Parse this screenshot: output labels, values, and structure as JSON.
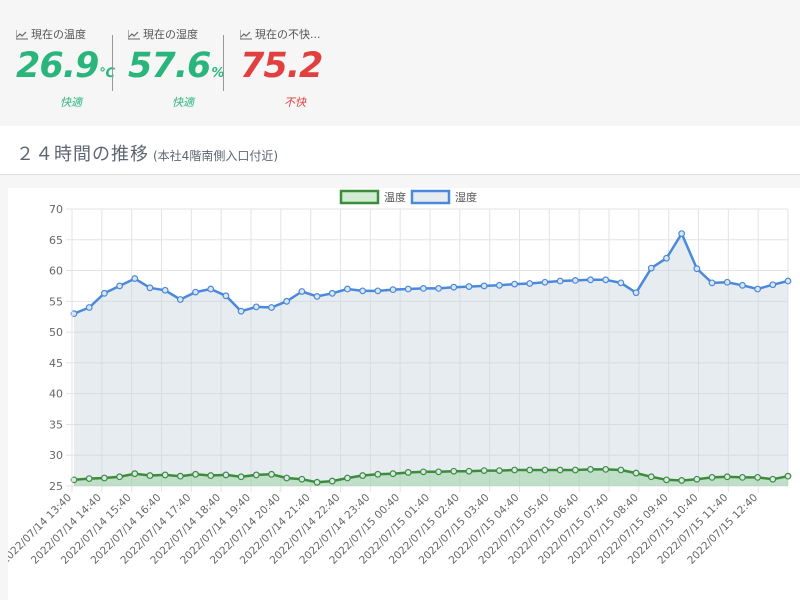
{
  "metrics": [
    {
      "label": "現在の温度",
      "value": "26.9",
      "unit": "℃",
      "status": "快適",
      "color": "#2ab57d"
    },
    {
      "label": "現在の湿度",
      "value": "57.6",
      "unit": "%",
      "status": "快適",
      "color": "#2ab57d"
    },
    {
      "label": "現在の不快...",
      "value": "75.2",
      "unit": "",
      "status": "不快",
      "color": "#e04040"
    }
  ],
  "section": {
    "title": "２４時間の推移",
    "subtitle": "(本社4階南側入口付近)"
  },
  "chart_data": {
    "type": "line",
    "legend": [
      "温度",
      "湿度"
    ],
    "legend_position": "top",
    "grid": true,
    "ylim": [
      25,
      70
    ],
    "yticks": [
      25,
      30,
      35,
      40,
      45,
      50,
      55,
      60,
      65,
      70
    ],
    "x_tick_labels": [
      "2022/07/14 13:40",
      "2022/07/14 14:40",
      "2022/07/14 15:40",
      "2022/07/14 16:40",
      "2022/07/14 17:40",
      "2022/07/14 18:40",
      "2022/07/14 19:40",
      "2022/07/14 20:40",
      "2022/07/14 21:40",
      "2022/07/14 22:40",
      "2022/07/14 23:40",
      "2022/07/15 00:40",
      "2022/07/15 01:40",
      "2022/07/15 02:40",
      "2022/07/15 03:40",
      "2022/07/15 04:40",
      "2022/07/15 05:40",
      "2022/07/15 06:40",
      "2022/07/15 07:40",
      "2022/07/15 08:40",
      "2022/07/15 09:40",
      "2022/07/15 10:40",
      "2022/07/15 11:40",
      "2022/07/15 12:40"
    ],
    "series": [
      {
        "name": "温度",
        "color": "#3c8c3c",
        "fill": "rgba(120,200,130,0.35)",
        "values": [
          26.0,
          26.2,
          26.3,
          26.5,
          27.0,
          26.7,
          26.8,
          26.6,
          26.9,
          26.7,
          26.8,
          26.5,
          26.8,
          26.9,
          26.3,
          26.1,
          25.6,
          25.8,
          26.3,
          26.7,
          26.9,
          27.0,
          27.2,
          27.3,
          27.3,
          27.4,
          27.4,
          27.5,
          27.5,
          27.6,
          27.6,
          27.6,
          27.6,
          27.6,
          27.7,
          27.7,
          27.6,
          27.1,
          26.5,
          26.0,
          25.9,
          26.1,
          26.4,
          26.5,
          26.4,
          26.4,
          26.1,
          26.6
        ]
      },
      {
        "name": "湿度",
        "color": "#4a89dc",
        "fill": "rgba(200,212,222,0.45)",
        "values": [
          53.0,
          54.0,
          56.3,
          57.5,
          58.7,
          57.2,
          56.8,
          55.3,
          56.5,
          57.0,
          55.9,
          53.4,
          54.1,
          54.0,
          55.0,
          56.6,
          55.8,
          56.3,
          57.0,
          56.7,
          56.7,
          56.9,
          57.0,
          57.1,
          57.1,
          57.3,
          57.4,
          57.5,
          57.6,
          57.8,
          57.9,
          58.1,
          58.3,
          58.4,
          58.5,
          58.5,
          58.0,
          56.4,
          60.4,
          62.0,
          66.0,
          60.3,
          58.0,
          58.1,
          57.6,
          57.0,
          57.7,
          58.3
        ]
      }
    ]
  }
}
